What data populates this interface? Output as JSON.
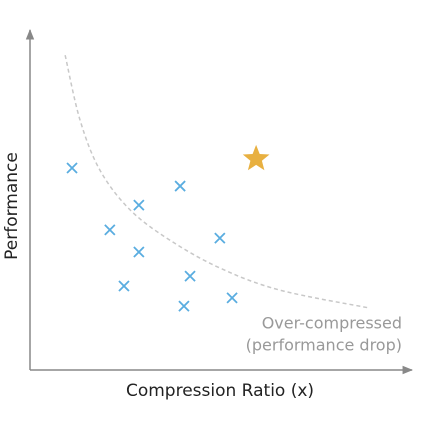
{
  "chart_data": {
    "type": "scatter",
    "x_label": "Compression Ratio (x)",
    "y_label": "Performance",
    "xlim": [
      0,
      100
    ],
    "ylim": [
      0,
      100
    ],
    "points": {
      "color": "#5aade0",
      "x": [
        11.0,
        28.5,
        39.3,
        20.9,
        28.5,
        49.7,
        41.9,
        24.6,
        40.3,
        52.9
      ],
      "y": [
        59.4,
        48.5,
        54.1,
        41.2,
        34.7,
        38.8,
        27.6,
        24.7,
        18.8,
        21.2
      ]
    },
    "highlight": {
      "color": "#e8b040",
      "x": [
        59.2
      ],
      "y": [
        62.1
      ]
    },
    "curve": {
      "color": "#c8c8c8",
      "x": [
        9.2,
        13.1,
        18.3,
        26.2,
        36.6,
        49.7,
        65.4,
        89.0
      ],
      "y": [
        92.6,
        73.5,
        58.8,
        47.1,
        38.2,
        30.0,
        23.5,
        18.2
      ]
    },
    "annotation": [
      "Over-compressed",
      "(performance drop)"
    ]
  }
}
